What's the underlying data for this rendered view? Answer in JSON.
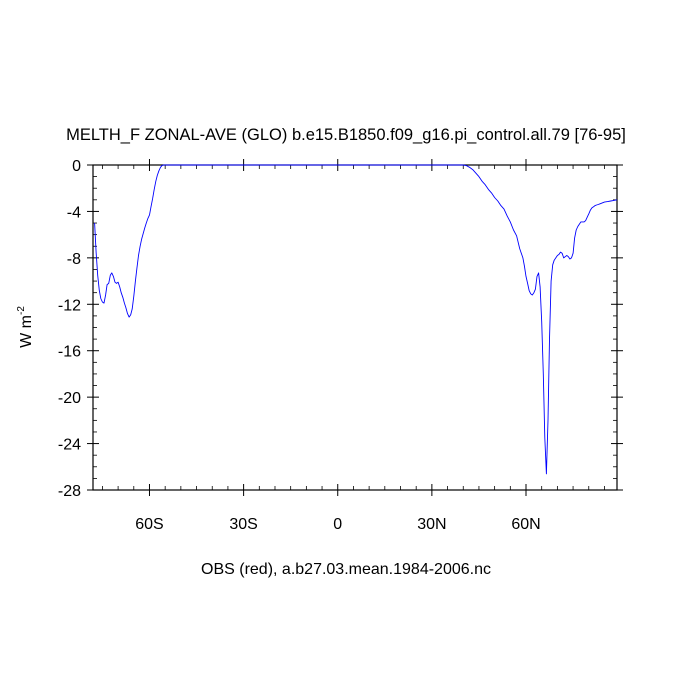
{
  "chart_data": {
    "type": "line",
    "title": "MELTH_F ZONAL-AVE (GLO) b.e15.B1850.f09_g16.pi_control.all.79 [76-95]",
    "ylabel": "W m",
    "ylabel_sup": "-2",
    "xlabel": "OBS (red), a.b27.03.mean.1984-2006.nc",
    "xlim": [
      -78,
      89
    ],
    "ylim": [
      -28,
      0
    ],
    "x_ticks": [
      {
        "value": -60,
        "label": "60S"
      },
      {
        "value": -30,
        "label": "30S"
      },
      {
        "value": 0,
        "label": "0"
      },
      {
        "value": 30,
        "label": "30N"
      },
      {
        "value": 60,
        "label": "60N"
      }
    ],
    "y_ticks": [
      {
        "value": 0,
        "label": "0"
      },
      {
        "value": -4,
        "label": "-4"
      },
      {
        "value": -8,
        "label": "-8"
      },
      {
        "value": -12,
        "label": "-12"
      },
      {
        "value": -16,
        "label": "-16"
      },
      {
        "value": -20,
        "label": "-20"
      },
      {
        "value": -24,
        "label": "-24"
      },
      {
        "value": -28,
        "label": "-28"
      }
    ],
    "series": [
      {
        "color": "#0000ff",
        "x": [
          -77.5,
          -77,
          -76.5,
          -76,
          -75.5,
          -75,
          -74.5,
          -74,
          -73.5,
          -73,
          -72.5,
          -72,
          -71.5,
          -71,
          -70.5,
          -70,
          -69.5,
          -69,
          -68.5,
          -68,
          -67.5,
          -67,
          -66.5,
          -66,
          -65.5,
          -65,
          -64.5,
          -64,
          -63.5,
          -63,
          -62.5,
          -62,
          -61.5,
          -61,
          -60.5,
          -60,
          -59.5,
          -59,
          -58.5,
          -58,
          -57.5,
          -57,
          -56.5,
          -56,
          -55.5,
          -55,
          -54.5,
          -54,
          -53.5,
          -53,
          -52,
          -50,
          -45,
          -40,
          -30,
          -20,
          -10,
          0,
          10,
          20,
          30,
          35,
          40,
          41,
          42,
          43,
          44,
          45,
          46,
          47,
          48,
          49,
          50,
          51,
          52,
          53,
          54,
          55,
          56,
          57,
          58,
          59,
          59.5,
          60,
          60.5,
          61,
          61.5,
          62,
          62.5,
          63,
          63.5,
          64,
          64.5,
          65,
          65.5,
          66,
          66.5,
          67,
          67.5,
          68,
          68.5,
          69,
          69.5,
          70,
          70.5,
          71,
          71.5,
          72,
          72.5,
          73,
          73.5,
          74,
          74.5,
          75,
          75.5,
          76,
          76.5,
          77,
          77.5,
          78,
          78.5,
          79,
          79.5,
          80,
          80.5,
          81,
          81.5,
          82,
          82.5,
          83,
          83.5,
          84,
          85,
          86,
          87,
          88,
          89
        ],
        "y": [
          -5.0,
          -7.5,
          -9.5,
          -10.8,
          -11.5,
          -11.8,
          -11.9,
          -11.2,
          -10.3,
          -10.2,
          -9.5,
          -9.3,
          -9.6,
          -10.1,
          -10.2,
          -10.1,
          -10.5,
          -11.0,
          -11.4,
          -11.9,
          -12.3,
          -12.8,
          -13.1,
          -12.9,
          -12.4,
          -11.3,
          -10.0,
          -8.9,
          -7.8,
          -7.0,
          -6.4,
          -5.9,
          -5.4,
          -5.0,
          -4.6,
          -4.3,
          -3.6,
          -2.9,
          -2.1,
          -1.4,
          -0.9,
          -0.5,
          -0.2,
          -0.05,
          0,
          0,
          0,
          0,
          0,
          0,
          0,
          0,
          0,
          0,
          0,
          0,
          0,
          0,
          0,
          0,
          0,
          0,
          0,
          -0.05,
          -0.2,
          -0.4,
          -0.7,
          -1.0,
          -1.4,
          -1.7,
          -2.1,
          -2.4,
          -2.8,
          -3.1,
          -3.5,
          -3.8,
          -4.4,
          -4.9,
          -5.6,
          -6.1,
          -7.2,
          -8.0,
          -8.7,
          -9.6,
          -10.2,
          -10.8,
          -11.1,
          -11.2,
          -11.0,
          -10.7,
          -9.6,
          -9.3,
          -10.5,
          -13.5,
          -18.0,
          -23.5,
          -26.6,
          -22.0,
          -15.0,
          -10.0,
          -8.6,
          -8.2,
          -8.0,
          -7.8,
          -7.7,
          -7.5,
          -7.6,
          -8.0,
          -7.9,
          -7.8,
          -7.9,
          -8.1,
          -8.0,
          -7.6,
          -6.3,
          -5.6,
          -5.3,
          -5.1,
          -4.9,
          -4.9,
          -4.9,
          -4.8,
          -4.5,
          -4.2,
          -3.9,
          -3.7,
          -3.6,
          -3.5,
          -3.45,
          -3.4,
          -3.35,
          -3.3,
          -3.2,
          -3.15,
          -3.1,
          -3.05,
          -3.0
        ]
      }
    ]
  }
}
